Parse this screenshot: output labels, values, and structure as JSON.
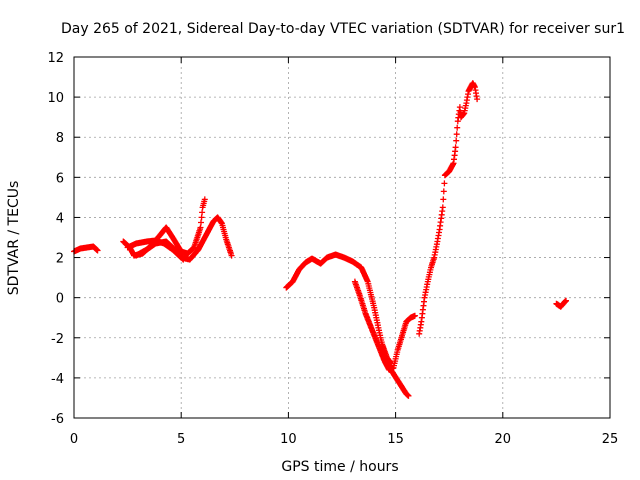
{
  "chart_data": {
    "type": "scatter",
    "title": "Day 265 of 2021, Sidereal Day-to-day VTEC variation (SDTVAR) for receiver sur1",
    "xlabel": "GPS time / hours",
    "ylabel": "SDTVAR / TECUs",
    "xlim": [
      0,
      25
    ],
    "ylim": [
      -6,
      12
    ],
    "xticks": [
      0,
      5,
      10,
      15,
      20,
      25
    ],
    "yticks": [
      -6,
      -4,
      -2,
      0,
      2,
      4,
      6,
      8,
      10,
      12
    ],
    "grid": true,
    "marker": "+",
    "series": [
      {
        "name": "SDTVAR",
        "color": "#ff0000",
        "segments": [
          [
            [
              0.0,
              2.3
            ],
            [
              0.3,
              2.45
            ],
            [
              0.6,
              2.5
            ],
            [
              0.9,
              2.55
            ],
            [
              1.1,
              2.35
            ]
          ],
          [
            [
              2.3,
              2.8
            ],
            [
              2.6,
              2.5
            ],
            [
              2.8,
              2.1
            ],
            [
              3.2,
              2.2
            ],
            [
              3.6,
              2.6
            ],
            [
              4.0,
              3.1
            ],
            [
              4.3,
              3.5
            ],
            [
              4.6,
              3.0
            ],
            [
              5.0,
              2.3
            ],
            [
              5.3,
              2.2
            ],
            [
              5.6,
              2.5
            ],
            [
              5.9,
              3.5
            ],
            [
              6.0,
              4.5
            ],
            [
              6.1,
              4.9
            ]
          ],
          [
            [
              2.5,
              2.5
            ],
            [
              2.9,
              2.7
            ],
            [
              3.4,
              2.8
            ],
            [
              3.8,
              2.85
            ],
            [
              4.2,
              2.7
            ],
            [
              4.6,
              2.4
            ],
            [
              5.0,
              2.0
            ],
            [
              5.4,
              1.9
            ],
            [
              5.8,
              2.4
            ],
            [
              6.2,
              3.2
            ],
            [
              6.5,
              3.8
            ],
            [
              6.7,
              4.0
            ],
            [
              6.9,
              3.7
            ],
            [
              7.1,
              2.9
            ],
            [
              7.35,
              2.1
            ]
          ],
          [
            [
              2.9,
              2.1
            ],
            [
              3.4,
              2.4
            ],
            [
              3.8,
              2.7
            ],
            [
              4.3,
              2.8
            ],
            [
              4.7,
              2.4
            ],
            [
              5.1,
              1.9
            ]
          ],
          [
            [
              9.9,
              0.5
            ],
            [
              10.2,
              0.8
            ],
            [
              10.5,
              1.4
            ],
            [
              10.8,
              1.75
            ],
            [
              11.1,
              1.95
            ],
            [
              11.5,
              1.7
            ],
            [
              11.8,
              2.0
            ],
            [
              12.2,
              2.15
            ],
            [
              12.6,
              2.0
            ],
            [
              13.0,
              1.8
            ],
            [
              13.4,
              1.5
            ],
            [
              13.7,
              0.8
            ],
            [
              14.0,
              -0.5
            ],
            [
              14.3,
              -2.0
            ],
            [
              14.6,
              -3.3
            ],
            [
              14.9,
              -3.8
            ],
            [
              15.2,
              -4.3
            ],
            [
              15.5,
              -4.8
            ],
            [
              15.6,
              -4.9
            ]
          ],
          [
            [
              13.1,
              0.8
            ],
            [
              13.3,
              0.2
            ],
            [
              13.6,
              -0.8
            ],
            [
              13.9,
              -1.6
            ],
            [
              14.2,
              -2.4
            ],
            [
              14.5,
              -3.2
            ],
            [
              14.7,
              -3.6
            ],
            [
              14.9,
              -3.5
            ],
            [
              15.1,
              -2.6
            ],
            [
              15.3,
              -1.9
            ],
            [
              15.5,
              -1.2
            ],
            [
              15.7,
              -1.0
            ],
            [
              15.9,
              -0.9
            ]
          ],
          [
            [
              14.4,
              -2.4
            ],
            [
              14.6,
              -3.0
            ],
            [
              14.8,
              -3.3
            ]
          ],
          [
            [
              16.1,
              -1.8
            ],
            [
              16.2,
              -1.2
            ],
            [
              16.35,
              0.0
            ],
            [
              16.5,
              0.8
            ],
            [
              16.65,
              1.5
            ],
            [
              16.8,
              2.0
            ],
            [
              16.95,
              2.8
            ],
            [
              17.05,
              3.4
            ],
            [
              17.2,
              4.5
            ],
            [
              17.3,
              6.1
            ],
            [
              17.5,
              6.3
            ],
            [
              17.7,
              6.7
            ],
            [
              17.8,
              7.5
            ],
            [
              17.9,
              8.8
            ],
            [
              18.0,
              9.5
            ],
            [
              18.05,
              9.0
            ],
            [
              18.2,
              9.2
            ],
            [
              18.3,
              9.7
            ],
            [
              18.4,
              10.3
            ],
            [
              18.6,
              10.7
            ],
            [
              18.7,
              10.5
            ],
            [
              18.8,
              9.9
            ]
          ],
          [
            [
              22.5,
              -0.3
            ],
            [
              22.7,
              -0.45
            ],
            [
              22.9,
              -0.2
            ],
            [
              22.95,
              -0.15
            ]
          ]
        ]
      }
    ]
  }
}
